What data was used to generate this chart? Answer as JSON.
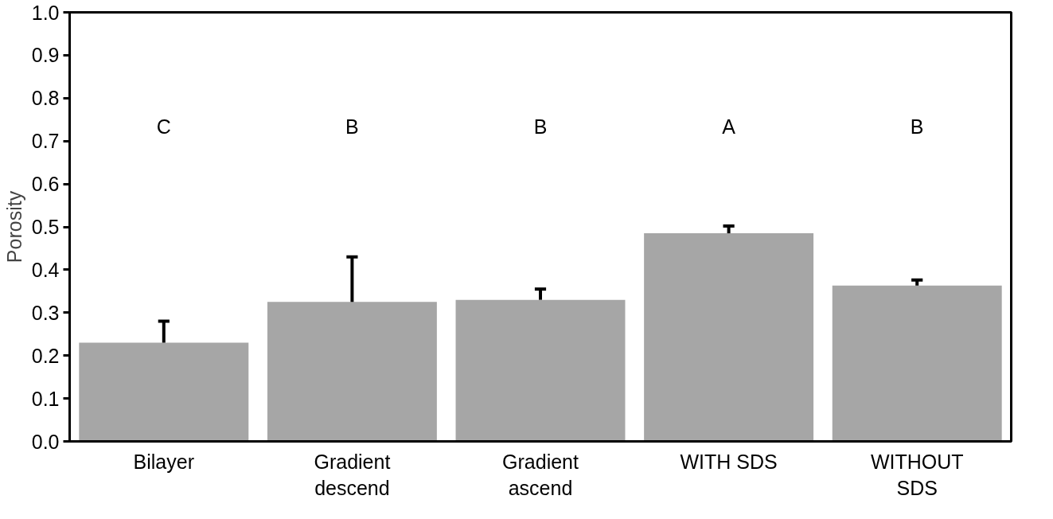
{
  "chart_data": {
    "type": "bar",
    "ylabel": "Porosity",
    "categories": [
      "Bilayer",
      "Gradient\ndescend",
      "Gradient\nascend",
      "WITH SDS",
      "WITHOUT\nSDS"
    ],
    "values": [
      0.23,
      0.325,
      0.33,
      0.485,
      0.363
    ],
    "errors": [
      [
        0.23,
        0.28
      ],
      [
        0.325,
        0.43
      ],
      [
        0.33,
        0.355
      ],
      [
        0.485,
        0.502
      ],
      [
        0.363,
        0.376
      ]
    ],
    "color": "#a6a6a6",
    "ylim": [
      0,
      1
    ],
    "yticks": [
      {
        "value": 0,
        "label": "0.0"
      },
      0.1,
      0.2,
      0.3,
      0.4,
      0.5,
      0.6,
      0.7,
      0.8,
      0.9,
      {
        "value": 1,
        "label": "1.0"
      }
    ],
    "grid": false,
    "annotations": [
      "C",
      "B",
      "B",
      "A",
      "B"
    ]
  }
}
